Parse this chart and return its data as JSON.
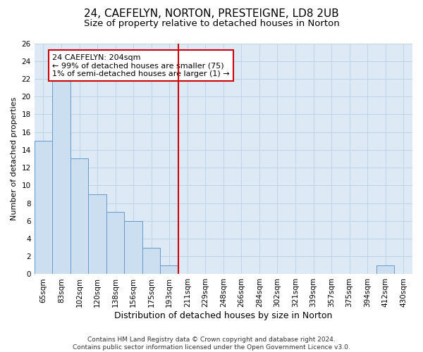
{
  "title": "24, CAEFELYN, NORTON, PRESTEIGNE, LD8 2UB",
  "subtitle": "Size of property relative to detached houses in Norton",
  "xlabel": "Distribution of detached houses by size in Norton",
  "ylabel": "Number of detached properties",
  "categories": [
    "65sqm",
    "83sqm",
    "102sqm",
    "120sqm",
    "138sqm",
    "156sqm",
    "175sqm",
    "193sqm",
    "211sqm",
    "229sqm",
    "248sqm",
    "266sqm",
    "284sqm",
    "302sqm",
    "321sqm",
    "339sqm",
    "357sqm",
    "375sqm",
    "394sqm",
    "412sqm",
    "430sqm"
  ],
  "values": [
    15,
    22,
    13,
    9,
    7,
    6,
    3,
    1,
    0,
    0,
    0,
    0,
    0,
    0,
    0,
    0,
    0,
    0,
    0,
    1,
    0
  ],
  "bar_color": "#ccdff0",
  "bar_edge_color": "#6699cc",
  "vline_color": "#cc0000",
  "annotation_box_color": "#cc0000",
  "annotation_text": "24 CAEFELYN: 204sqm\n← 99% of detached houses are smaller (75)\n1% of semi-detached houses are larger (1) →",
  "ylim": [
    0,
    26
  ],
  "yticks": [
    0,
    2,
    4,
    6,
    8,
    10,
    12,
    14,
    16,
    18,
    20,
    22,
    24,
    26
  ],
  "grid_color": "#c0d4e8",
  "bg_color": "#ddeaf5",
  "footnote": "Contains HM Land Registry data © Crown copyright and database right 2024.\nContains public sector information licensed under the Open Government Licence v3.0.",
  "title_fontsize": 11,
  "subtitle_fontsize": 9.5,
  "xlabel_fontsize": 9,
  "ylabel_fontsize": 8,
  "tick_fontsize": 7.5,
  "annotation_fontsize": 8,
  "footnote_fontsize": 6.5
}
